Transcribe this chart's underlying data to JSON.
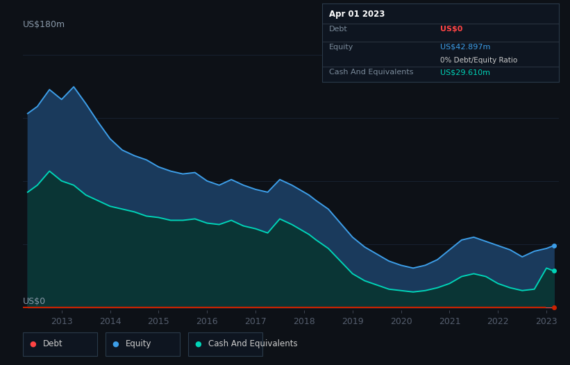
{
  "bg_color": "#0d1117",
  "plot_bg_color": "#0d1117",
  "grid_color": "#1a2535",
  "title_label": "US$180m",
  "bottom_label": "US$0",
  "years": [
    2012.3,
    2012.5,
    2012.75,
    2013.0,
    2013.25,
    2013.5,
    2013.75,
    2014.0,
    2014.25,
    2014.5,
    2014.75,
    2015.0,
    2015.25,
    2015.5,
    2015.75,
    2016.0,
    2016.25,
    2016.5,
    2016.75,
    2017.0,
    2017.25,
    2017.5,
    2017.75,
    2018.0,
    2018.1,
    2018.25,
    2018.5,
    2018.75,
    2019.0,
    2019.25,
    2019.5,
    2019.75,
    2020.0,
    2020.25,
    2020.5,
    2020.75,
    2021.0,
    2021.25,
    2021.5,
    2021.75,
    2022.0,
    2022.25,
    2022.5,
    2022.75,
    2023.0,
    2023.15
  ],
  "equity": [
    138,
    143,
    155,
    148,
    157,
    145,
    132,
    120,
    112,
    108,
    105,
    100,
    97,
    95,
    96,
    90,
    87,
    91,
    87,
    84,
    82,
    91,
    87,
    82,
    80,
    76,
    70,
    60,
    50,
    43,
    38,
    33,
    30,
    28,
    30,
    34,
    41,
    48,
    50,
    47,
    44,
    41,
    36,
    40,
    42,
    44
  ],
  "cash": [
    82,
    87,
    97,
    90,
    87,
    80,
    76,
    72,
    70,
    68,
    65,
    64,
    62,
    62,
    63,
    60,
    59,
    62,
    58,
    56,
    53,
    63,
    59,
    54,
    52,
    48,
    42,
    33,
    24,
    19,
    16,
    13,
    12,
    11,
    12,
    14,
    17,
    22,
    24,
    22,
    17,
    14,
    12,
    13,
    28,
    26
  ],
  "debt": [
    0,
    0,
    0,
    0,
    0,
    0,
    0,
    0,
    0,
    0,
    0,
    0,
    0,
    0,
    0,
    0,
    0,
    0,
    0,
    0,
    0,
    0,
    0,
    0,
    0,
    0,
    0,
    0,
    0,
    0,
    0,
    0,
    0,
    0,
    0,
    0,
    0,
    0,
    0,
    0,
    0,
    0,
    0,
    0,
    0,
    0
  ],
  "x_ticks": [
    2013,
    2014,
    2015,
    2016,
    2017,
    2018,
    2019,
    2020,
    2021,
    2022,
    2023
  ],
  "x_tick_labels": [
    "2013",
    "2014",
    "2015",
    "2016",
    "2017",
    "2018",
    "2019",
    "2020",
    "2021",
    "2022",
    "2023"
  ],
  "xlim": [
    2012.2,
    2023.25
  ],
  "ylim": [
    -2,
    185
  ],
  "equity_line_color": "#3d9ee8",
  "cash_line_color": "#00d4b8",
  "debt_line_color": "#ff4444",
  "equity_fill_color": "#1a3a5c",
  "cash_fill_color": "#0a3535",
  "tooltip_bg": "#0e1520",
  "tooltip_border": "#2a3a4a",
  "tooltip_title": "Apr 01 2023",
  "tooltip_debt_label": "Debt",
  "tooltip_debt_value": "US$0",
  "tooltip_equity_label": "Equity",
  "tooltip_equity_value": "US$42.897m",
  "tooltip_ratio": "0% Debt/Equity Ratio",
  "tooltip_cash_label": "Cash And Equivalents",
  "tooltip_cash_value": "US$29.610m",
  "legend_debt": "Debt",
  "legend_equity": "Equity",
  "legend_cash": "Cash And Equivalents",
  "redline_color": "#cc2200",
  "axis_tick_color": "#555e6e",
  "label_color": "#8a9aaa"
}
